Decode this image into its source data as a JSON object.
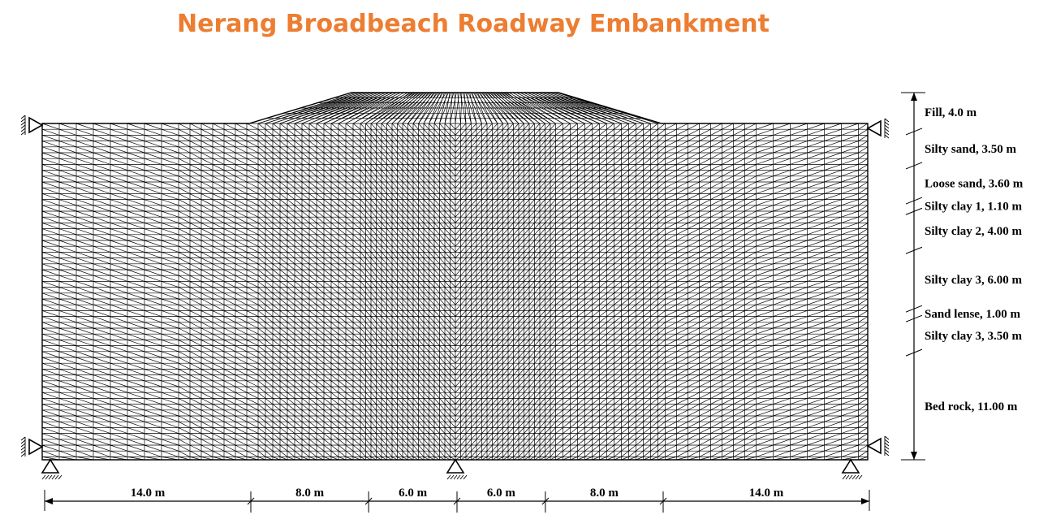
{
  "title": "Nerang Broadbeach Roadway Embankment",
  "colors": {
    "title": "#ED7D31",
    "mesh": "#000000"
  },
  "icons": [
    "roller-support-icon",
    "pin-support-icon",
    "hatch-ground-icon"
  ],
  "layers": [
    {
      "name": "Fill, 4.0 m",
      "thickness_m": 4.0
    },
    {
      "name": "Silty sand, 3.50 m",
      "thickness_m": 3.5
    },
    {
      "name": "Loose sand, 3.60 m",
      "thickness_m": 3.6
    },
    {
      "name": "Silty clay 1, 1.10 m",
      "thickness_m": 1.1
    },
    {
      "name": "Silty clay 2, 4.00 m",
      "thickness_m": 4.0
    },
    {
      "name": "Silty clay 3, 6.00 m",
      "thickness_m": 6.0
    },
    {
      "name": "Sand lense, 1.00 m",
      "thickness_m": 1.0
    },
    {
      "name": "Silty clay 3, 3.50 m",
      "thickness_m": 3.5
    },
    {
      "name": "Bed rock, 11.00 m",
      "thickness_m": 11.0
    }
  ],
  "dimensions": [
    {
      "label": "14.0 m",
      "length_m": 14.0
    },
    {
      "label": "8.0 m",
      "length_m": 8.0
    },
    {
      "label": "6.0 m",
      "length_m": 6.0
    },
    {
      "label": "6.0 m",
      "length_m": 6.0
    },
    {
      "label": "8.0 m",
      "length_m": 8.0
    },
    {
      "label": "14.0 m",
      "length_m": 14.0
    }
  ]
}
